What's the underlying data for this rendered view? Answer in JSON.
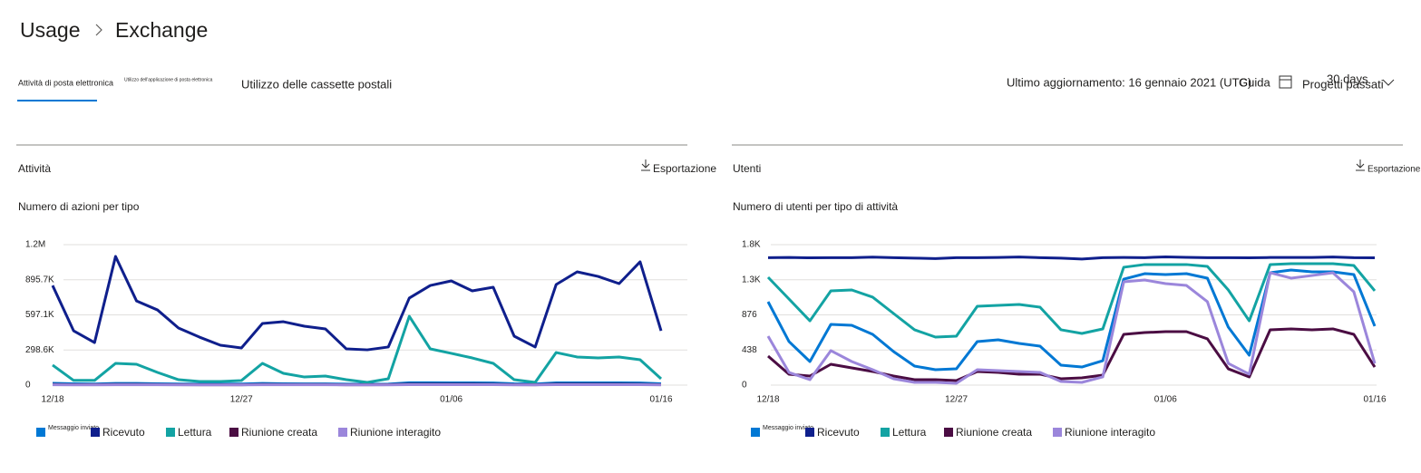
{
  "header": {
    "breadcrumb": [
      "Usage",
      "Exchange"
    ]
  },
  "tabs": [
    "Attività di posta elettronica",
    "Utilizzo dell'applicazione di posta elettronica",
    "Utilizzo delle cassette postali"
  ],
  "toolbar": {
    "last_updated": "Ultimo aggiornamento: 16 gennaio 2021 (UTC)",
    "help": "Guida",
    "period": "30 days",
    "period_label": "Progetti passati"
  },
  "chart_data": [
    {
      "type": "line",
      "section": "Attività",
      "export": "Esportazione",
      "title": "Numero di azioni per tipo",
      "categories": [
        "12/18",
        null,
        null,
        null,
        null,
        null,
        null,
        null,
        null,
        "12/27",
        null,
        null,
        null,
        null,
        null,
        null,
        null,
        null,
        null,
        "01/06",
        null,
        null,
        null,
        null,
        null,
        null,
        null,
        null,
        null,
        "01/16"
      ],
      "ylim": [
        0,
        1194200
      ],
      "yticks": [
        0,
        {
          "value": 298550,
          "label": "298.6K"
        },
        {
          "value": 597100,
          "label": "597.1K"
        },
        {
          "value": 895650,
          "label": "895.7K"
        },
        {
          "value": 1194200,
          "label": "1.2M"
        }
      ],
      "grid": true,
      "series": [
        {
          "name": "Messaggio inviato",
          "color": "#0078d4",
          "values": [
            15000,
            12000,
            10000,
            14000,
            14000,
            12000,
            10000,
            9000,
            9000,
            10000,
            14000,
            12000,
            11000,
            11000,
            9000,
            8000,
            9000,
            20000,
            20000,
            19000,
            19000,
            18000,
            12000,
            10000,
            19000,
            19000,
            19000,
            19000,
            18000,
            12000
          ]
        },
        {
          "name": "Ricevuto",
          "color": "#0f1f8c",
          "values": [
            847000,
            462000,
            362000,
            1094000,
            716000,
            639000,
            485000,
            408000,
            339000,
            316000,
            524000,
            539000,
            501000,
            478000,
            308000,
            300000,
            324000,
            740000,
            847000,
            886000,
            801000,
            832000,
            416000,
            324000,
            855000,
            963000,
            924000,
            863000,
            1048000,
            462000
          ]
        },
        {
          "name": "Lettura",
          "color": "#13a3a3",
          "values": [
            170000,
            40000,
            40000,
            185000,
            177000,
            108000,
            46000,
            31000,
            31000,
            39000,
            185000,
            100000,
            69000,
            77000,
            46000,
            23000,
            54000,
            585000,
            308000,
            270000,
            231000,
            185000,
            46000,
            23000,
            277000,
            239000,
            231000,
            239000,
            216000,
            54000
          ]
        },
        {
          "name": "Riunione creata",
          "color": "#4b0d43",
          "values": [
            6000,
            4000,
            4000,
            6000,
            6000,
            5000,
            4000,
            3000,
            3000,
            3000,
            6000,
            5000,
            5000,
            5000,
            3000,
            3000,
            4000,
            8000,
            8000,
            8000,
            8000,
            7000,
            4000,
            3000,
            8000,
            8000,
            8000,
            8000,
            7000,
            4000
          ]
        },
        {
          "name": "Riunione interagito",
          "color": "#9b86db",
          "values": [
            3000,
            2000,
            2000,
            3000,
            3000,
            3000,
            2000,
            2000,
            2000,
            2000,
            3000,
            3000,
            3000,
            3000,
            2000,
            2000,
            2000,
            4000,
            4000,
            4000,
            4000,
            4000,
            2000,
            2000,
            4000,
            4000,
            4000,
            4000,
            4000,
            2000
          ]
        }
      ]
    },
    {
      "type": "line",
      "section": "Utenti",
      "export": "Esportazione",
      "title": "Numero di utenti per tipo di attività",
      "categories": [
        "12/18",
        null,
        null,
        null,
        null,
        null,
        null,
        null,
        null,
        "12/27",
        null,
        null,
        null,
        null,
        null,
        null,
        null,
        null,
        null,
        "01/06",
        null,
        null,
        null,
        null,
        null,
        null,
        null,
        null,
        null,
        "01/16"
      ],
      "ylim": [
        0,
        1752
      ],
      "yticks": [
        0,
        438,
        876,
        {
          "value": 1314,
          "label": "1.3K"
        },
        {
          "value": 1752,
          "label": "1.8K"
        }
      ],
      "grid": true,
      "series": [
        {
          "name": "Messaggio inviato",
          "color": "#0078d4",
          "values": [
            1040,
            543,
            294,
            757,
            746,
            633,
            418,
            237,
            192,
            203,
            543,
            565,
            520,
            486,
            249,
            226,
            305,
            1322,
            1390,
            1379,
            1390,
            1334,
            723,
            373,
            1402,
            1436,
            1413,
            1413,
            1379,
            735
          ]
        },
        {
          "name": "Ricevuto",
          "color": "#0f1f8c",
          "values": [
            1590,
            1592,
            1588,
            1590,
            1590,
            1596,
            1590,
            1584,
            1578,
            1590,
            1590,
            1592,
            1598,
            1590,
            1584,
            1572,
            1590,
            1592,
            1590,
            1600,
            1594,
            1590,
            1590,
            1588,
            1592,
            1592,
            1592,
            1598,
            1590,
            1588
          ]
        },
        {
          "name": "Lettura",
          "color": "#13a3a3",
          "values": [
            1345,
            1074,
            802,
            1176,
            1187,
            1097,
            893,
            690,
            599,
            610,
            983,
            995,
            1006,
            972,
            690,
            644,
            701,
            1470,
            1504,
            1504,
            1504,
            1481,
            1187,
            802,
            1504,
            1515,
            1515,
            1515,
            1492,
            1176
          ]
        },
        {
          "name": "Riunione creata",
          "color": "#4b0d43",
          "values": [
            362,
            136,
            113,
            260,
            215,
            170,
            113,
            68,
            68,
            57,
            170,
            158,
            136,
            136,
            79,
            90,
            124,
            633,
            655,
            667,
            667,
            577,
            203,
            102,
            690,
            701,
            690,
            701,
            633,
            226
          ]
        },
        {
          "name": "Riunione interagito",
          "color": "#9b86db",
          "values": [
            610,
            158,
            68,
            430,
            294,
            192,
            79,
            34,
            34,
            23,
            192,
            181,
            170,
            158,
            45,
            34,
            102,
            1288,
            1311,
            1266,
            1243,
            1040,
            271,
            136,
            1402,
            1334,
            1367,
            1402,
            1164,
            271
          ]
        }
      ]
    }
  ]
}
